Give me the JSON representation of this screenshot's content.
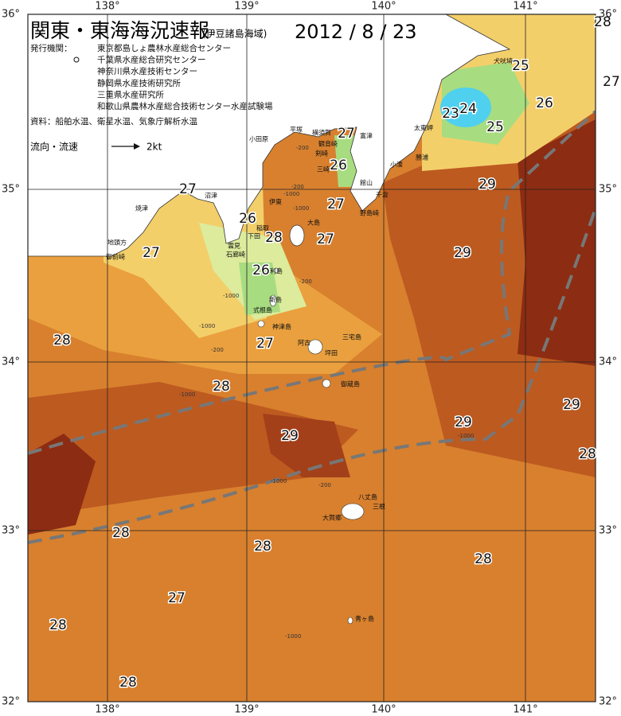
{
  "header": {
    "title": "関東・東海海況速報",
    "subtitle": "(伊豆諸島海域)",
    "date": "2012 / 8 / 23"
  },
  "issuers": {
    "label": "発行機関：",
    "list": [
      "東京都島しょ農林水産総合センター",
      "千葉県水産総合研究センター",
      "神奈川県水産技術センター",
      "静岡県水産技術研究所",
      "三重県水産研究所",
      "和歌山県農林水産総合技術センター水産試験場"
    ]
  },
  "sources": "資料：船舶水温、衛星水温、気象庁解析水温",
  "legend": {
    "label": "流向・流速",
    "speed": "2kt"
  },
  "axes": {
    "lon_labels": [
      "138°",
      "139°",
      "140°",
      "141°"
    ],
    "lat_labels": [
      "36°",
      "35°",
      "34°",
      "33°",
      "32°"
    ]
  },
  "isotherm_labels": [
    28,
    25,
    27,
    24,
    23,
    26,
    25,
    27,
    26,
    29,
    27,
    27,
    26,
    28,
    27,
    29,
    27,
    26,
    28,
    27,
    28,
    29,
    29,
    29,
    28,
    28,
    28,
    28,
    27,
    28,
    28
  ],
  "place_names": [
    "犬吠埼",
    "太東岬",
    "勝浦",
    "小湊",
    "富津",
    "横須賀",
    "観音崎",
    "剣崎",
    "三崎",
    "館山",
    "千倉",
    "野島崎",
    "平塚",
    "小田原",
    "沼津",
    "伊東",
    "焼津",
    "大島",
    "稲取",
    "下田",
    "雲見",
    "石廊崎",
    "地頭方",
    "御前崎",
    "利島",
    "新島",
    "式根島",
    "神津島",
    "三宅島",
    "坪田",
    "阿古",
    "御蔵島",
    "八丈島",
    "三根",
    "大賀郷",
    "青ヶ島"
  ],
  "depth_labels": [
    "-200",
    "-200",
    "-1000",
    "-1000",
    "-200",
    "-1000",
    "-1000",
    "-200",
    "-1000",
    "-1000",
    "-1000",
    "-200",
    "-1000"
  ]
}
